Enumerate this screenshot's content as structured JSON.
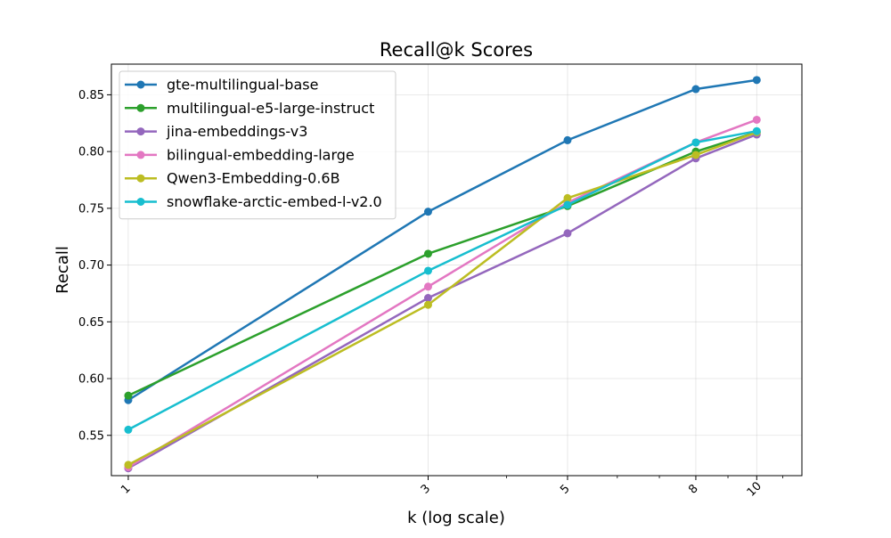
{
  "chart_data": {
    "type": "line",
    "title": "Recall@k Scores",
    "xlabel": "k (log scale)",
    "ylabel": "Recall",
    "x_scale": "log",
    "x": [
      1,
      3,
      5,
      8,
      10
    ],
    "xticks": [
      {
        "value": 1,
        "label": "1"
      },
      {
        "value": 3,
        "label": "3"
      },
      {
        "value": 5,
        "label": "5"
      },
      {
        "value": 8,
        "label": "8"
      },
      {
        "value": 10,
        "label": "10"
      }
    ],
    "xlim": [
      0.94,
      11.8
    ],
    "ylim": [
      0.5145,
      0.877
    ],
    "yticks": [
      0.55,
      0.6,
      0.65,
      0.7,
      0.75,
      0.8,
      0.85
    ],
    "ytick_labels": [
      "0.55",
      "0.60",
      "0.65",
      "0.70",
      "0.75",
      "0.80",
      "0.85"
    ],
    "grid": true,
    "legend_position": "top-left",
    "series": [
      {
        "name": "gte-multilingual-base",
        "color": "#1f77b4",
        "values": [
          0.581,
          0.747,
          0.81,
          0.855,
          0.863
        ]
      },
      {
        "name": "multilingual-e5-large-instruct",
        "color": "#2ca02c",
        "values": [
          0.585,
          0.71,
          0.752,
          0.8,
          0.817
        ]
      },
      {
        "name": "jina-embeddings-v3",
        "color": "#9467bd",
        "values": [
          0.521,
          0.671,
          0.728,
          0.794,
          0.815
        ]
      },
      {
        "name": "bilingual-embedding-large",
        "color": "#e377c2",
        "values": [
          0.522,
          0.681,
          0.755,
          0.808,
          0.828
        ]
      },
      {
        "name": "Qwen3-Embedding-0.6B",
        "color": "#bcbd22",
        "values": [
          0.524,
          0.665,
          0.759,
          0.797,
          0.817
        ]
      },
      {
        "name": "snowflake-arctic-embed-l-v2.0",
        "color": "#17becf",
        "values": [
          0.555,
          0.695,
          0.753,
          0.808,
          0.818
        ]
      }
    ]
  }
}
